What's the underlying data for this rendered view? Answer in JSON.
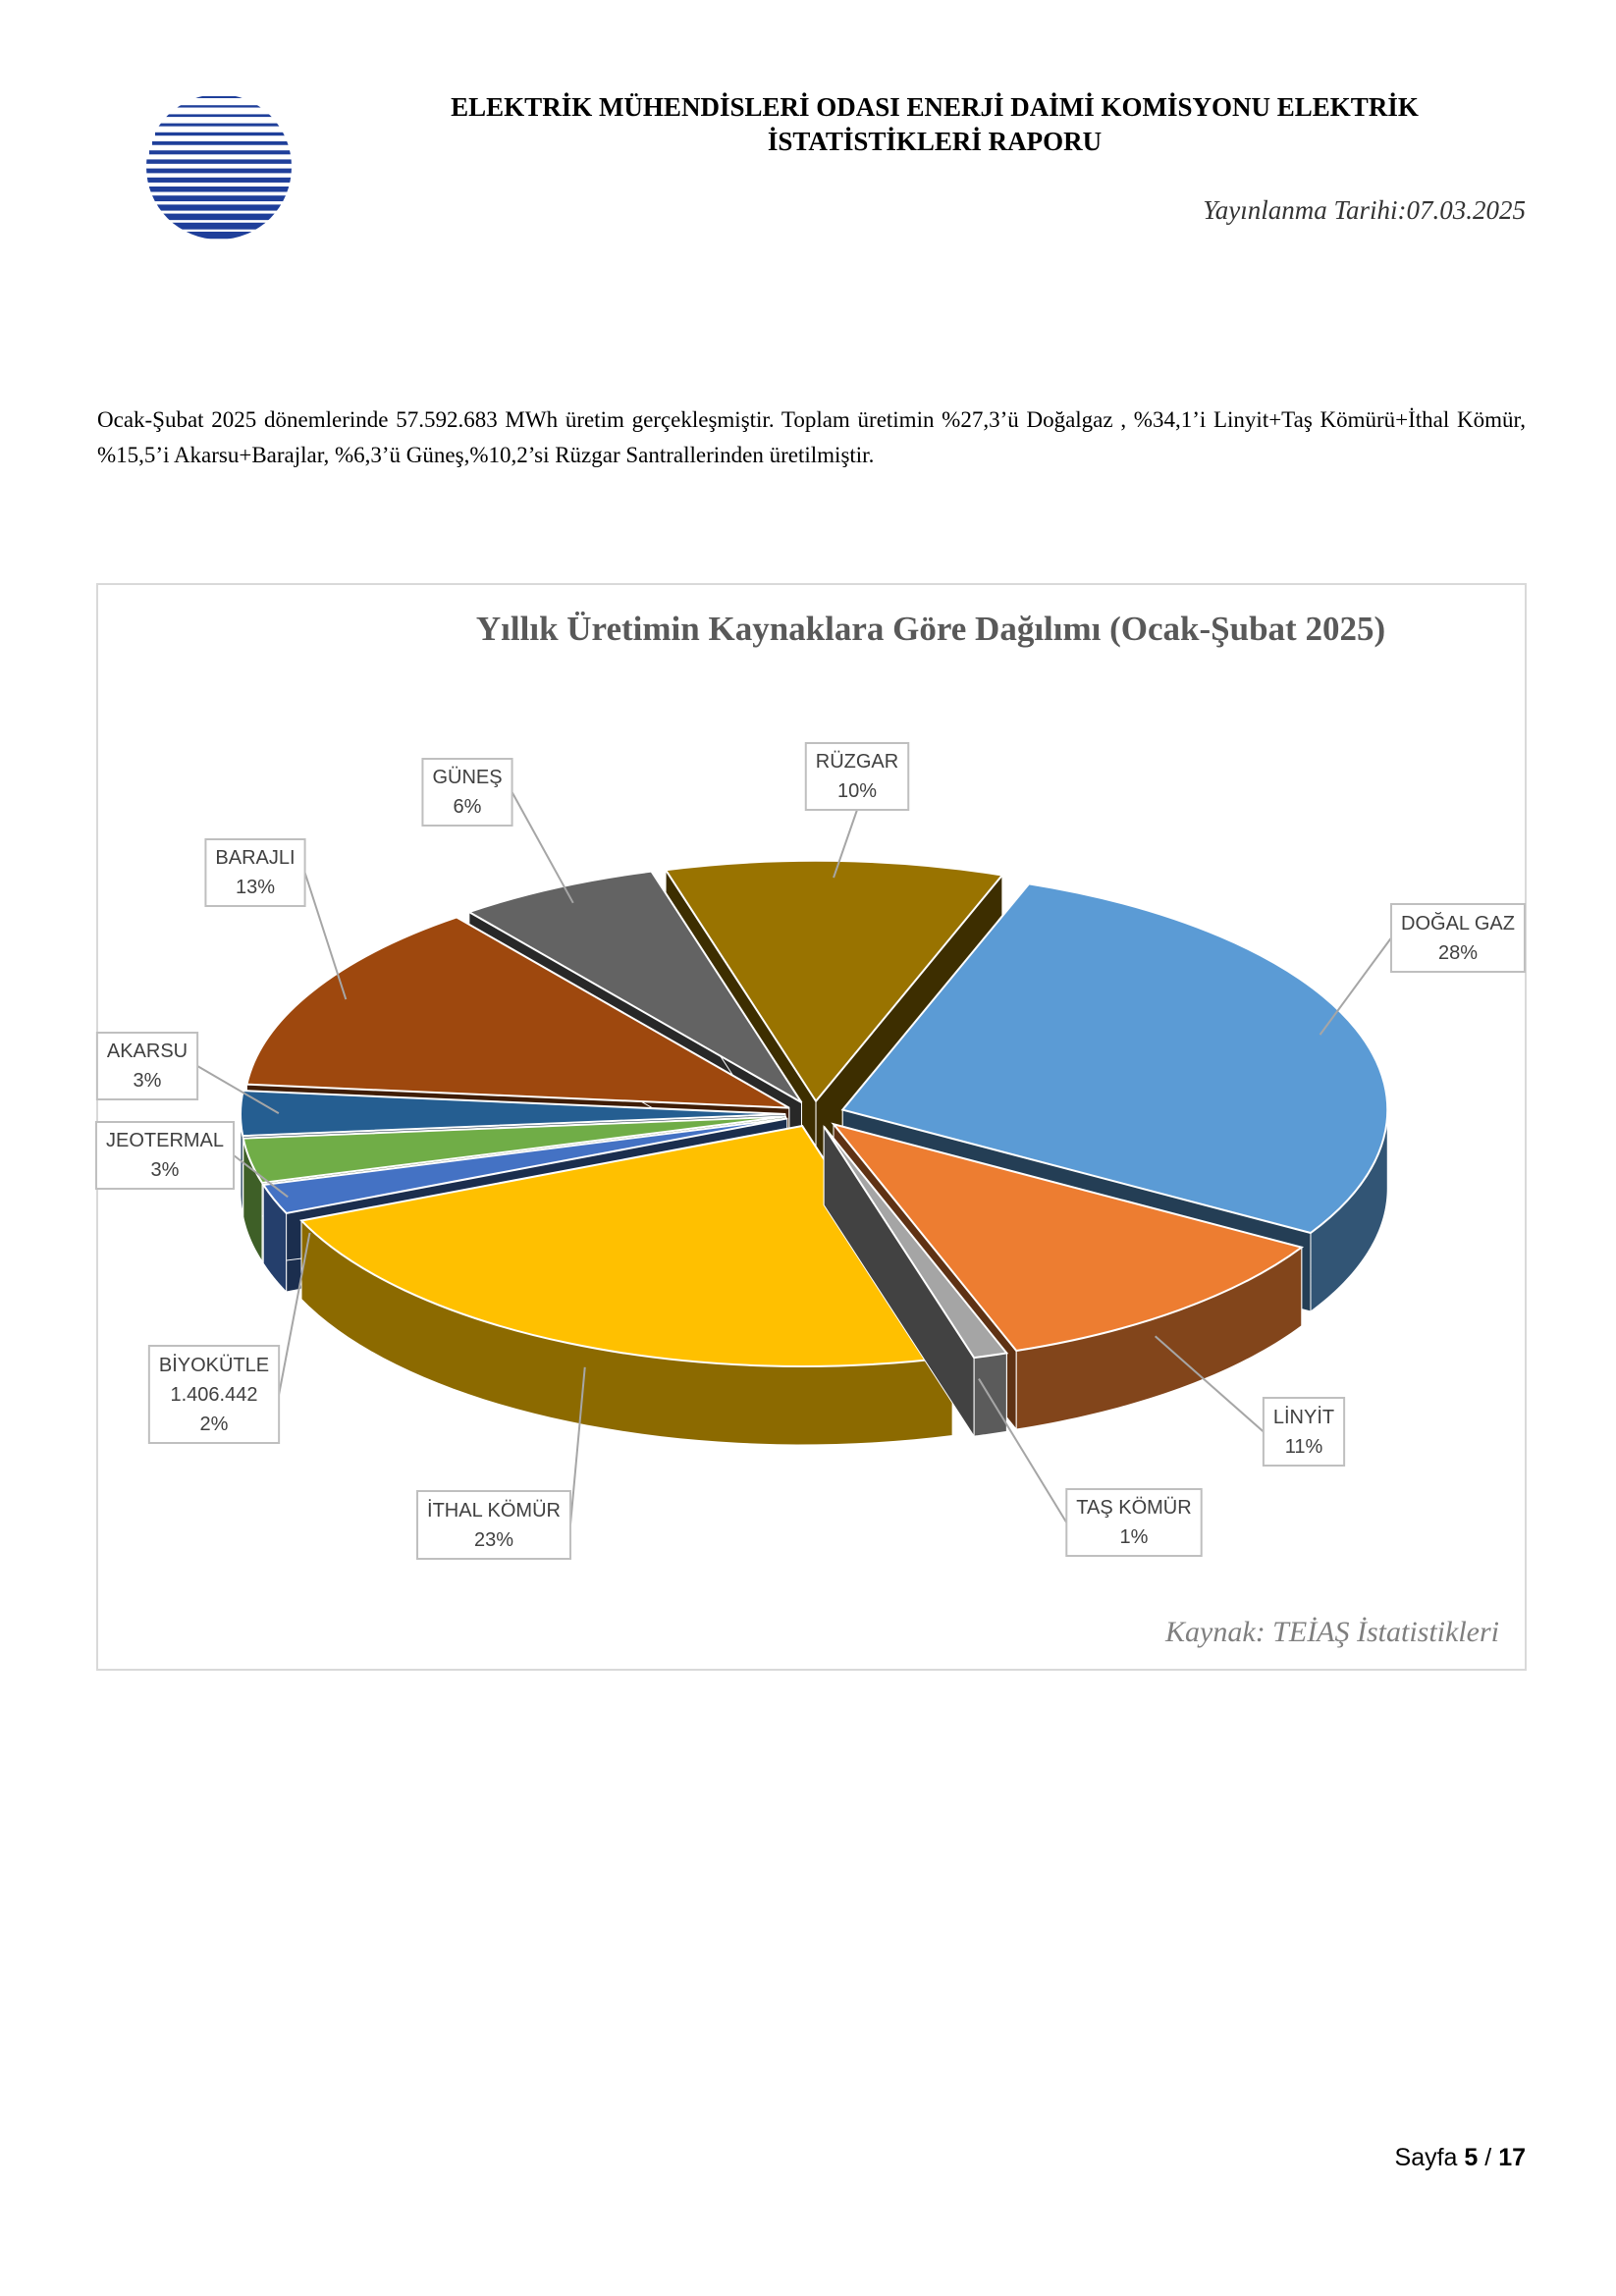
{
  "header": {
    "title_line1": "ELEKTRİK MÜHENDİSLERİ ODASI ENERJİ DAİMİ KOMİSYONU ELEKTRİK",
    "title_line2": "İSTATİSTİKLERİ RAPORU",
    "date": "Yayınlanma Tarihi:07.03.2025"
  },
  "paragraph": "Ocak-Şubat 2025 dönemlerinde 57.592.683 MWh üretim gerçekleşmiştir. Toplam üretimin %27,3’ü Doğalgaz , %34,1’i Linyit+Taş Kömürü+İthal Kömür, %15,5’i Akarsu+Barajlar, %6,3’ü Güneş,%10,2’si Rüzgar Santrallerinden üretilmiştir.",
  "chart_data": {
    "type": "pie",
    "title": "Yıllık Üretimin Kaynaklara Göre Dağılımı (Ocak-Şubat 2025)",
    "categories": [
      "DOĞAL GAZ",
      "LİNYİT",
      "TAŞ KÖMÜR",
      "İTHAL KÖMÜR",
      "BİYOKÜTLE",
      "JEOTERMAL",
      "AKARSU",
      "BARAJLI",
      "GÜNEŞ",
      "RÜZGAR"
    ],
    "values": [
      28,
      11,
      1,
      23,
      2,
      3,
      3,
      13,
      6,
      10
    ],
    "value_labels": [
      "28%",
      "11%",
      "1%",
      "23%",
      "2%",
      "3%",
      "3%",
      "13%",
      "6%",
      "10%"
    ],
    "colors": [
      "#5b9bd5",
      "#ed7d31",
      "#a5a5a5",
      "#ffc000",
      "#4472c4",
      "#70ad47",
      "#255e91",
      "#9e480e",
      "#636363",
      "#997300"
    ],
    "annotations": [
      {
        "category": "BİYOKÜTLE",
        "text": "1.406.442"
      }
    ],
    "source": "Kaynak: TEİAŞ İstatistikleri"
  },
  "footer": {
    "label": "Sayfa",
    "page": 5,
    "separator": "/",
    "total": 17
  }
}
